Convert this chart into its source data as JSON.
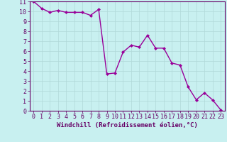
{
  "x": [
    0,
    1,
    2,
    3,
    4,
    5,
    6,
    7,
    8,
    9,
    10,
    11,
    12,
    13,
    14,
    15,
    16,
    17,
    18,
    19,
    20,
    21,
    22,
    23
  ],
  "y": [
    11,
    10.3,
    9.9,
    10.1,
    9.9,
    9.9,
    9.9,
    9.6,
    10.2,
    3.7,
    3.8,
    5.9,
    6.6,
    6.4,
    7.6,
    6.3,
    6.3,
    4.8,
    4.6,
    2.4,
    1.1,
    1.8,
    1.1,
    0.1
  ],
  "line_color": "#990099",
  "marker": "D",
  "marker_size": 2.0,
  "bg_color": "#c8f0f0",
  "grid_color": "#b0d8d8",
  "xlabel": "Windchill (Refroidissement éolien,°C)",
  "xlim": [
    -0.5,
    23.5
  ],
  "ylim": [
    0,
    11
  ],
  "xticks": [
    0,
    1,
    2,
    3,
    4,
    5,
    6,
    7,
    8,
    9,
    10,
    11,
    12,
    13,
    14,
    15,
    16,
    17,
    18,
    19,
    20,
    21,
    22,
    23
  ],
  "yticks": [
    0,
    1,
    2,
    3,
    4,
    5,
    6,
    7,
    8,
    9,
    10,
    11
  ],
  "axis_color": "#660066",
  "tick_label_color": "#660066",
  "xlabel_color": "#660066",
  "label_fontsize": 6.5,
  "tick_fontsize": 6.0,
  "linewidth": 1.0
}
